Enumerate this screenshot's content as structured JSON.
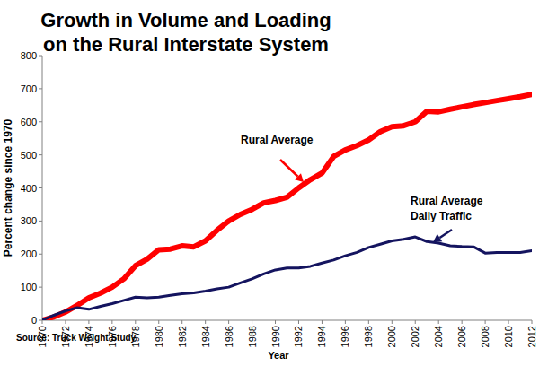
{
  "chart_data": {
    "type": "line",
    "title": "Growth in Volume and Loading\non the Rural Interstate System",
    "x_label": "Year",
    "y_label": "Percent change since 1970",
    "source": "Source:  Truck Weight Study",
    "annotations": [
      {
        "text": "Rural Average",
        "color": "#ff0000"
      },
      {
        "text": "Rural Average\nDaily Traffic",
        "color": "#14145f"
      }
    ],
    "x": [
      1970,
      1971,
      1972,
      1973,
      1974,
      1975,
      1976,
      1977,
      1978,
      1979,
      1980,
      1981,
      1982,
      1983,
      1984,
      1985,
      1986,
      1987,
      1988,
      1989,
      1990,
      1991,
      1992,
      1993,
      1994,
      1995,
      1996,
      1997,
      1998,
      1999,
      2000,
      2001,
      2002,
      2003,
      2004,
      2005,
      2006,
      2007,
      2008,
      2009,
      2010,
      2011,
      2012
    ],
    "series": [
      {
        "name": "Rural Average",
        "color": "#ff0000",
        "values": [
          0,
          10,
          25,
          45,
          68,
          82,
          100,
          125,
          165,
          185,
          213,
          215,
          225,
          222,
          240,
          272,
          300,
          320,
          335,
          355,
          362,
          372,
          400,
          425,
          445,
          495,
          515,
          528,
          545,
          570,
          585,
          588,
          600,
          632,
          630,
          638,
          645,
          652,
          658,
          664,
          670,
          676,
          683
        ]
      },
      {
        "name": "Rural Average Daily Traffic",
        "color": "#14145f",
        "values": [
          0,
          15,
          28,
          38,
          33,
          42,
          50,
          60,
          70,
          68,
          70,
          75,
          80,
          83,
          88,
          95,
          100,
          113,
          125,
          140,
          152,
          158,
          158,
          163,
          173,
          182,
          195,
          205,
          220,
          230,
          240,
          245,
          252,
          238,
          233,
          225,
          223,
          222,
          203,
          205,
          205,
          205,
          210
        ]
      }
    ],
    "xlim": [
      1970,
      2012
    ],
    "xticks": [
      1970,
      1972,
      1974,
      1976,
      1978,
      1980,
      1982,
      1984,
      1986,
      1988,
      1990,
      1992,
      1994,
      1996,
      1998,
      2000,
      2002,
      2004,
      2006,
      2008,
      2010,
      2012
    ],
    "ylim": [
      0,
      800
    ],
    "yticks": [
      0,
      100,
      200,
      300,
      400,
      500,
      600,
      700,
      800
    ],
    "grid": false
  }
}
